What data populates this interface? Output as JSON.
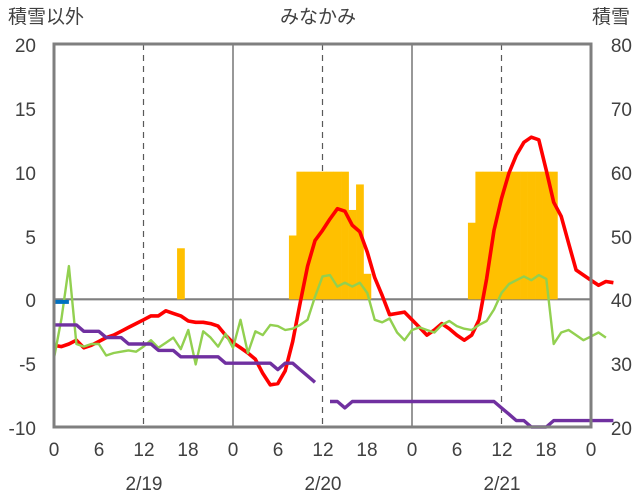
{
  "chart_data": {
    "type": "bar+line",
    "title": "みなかみ",
    "left_axis_label": "積雪以外",
    "right_axis_label": "積雪",
    "left_ylim": [
      -10,
      20
    ],
    "left_ticks": [
      "20",
      "15",
      "10",
      "5",
      "0",
      "-5",
      "-10"
    ],
    "right_ylim": [
      20,
      80
    ],
    "right_ticks": [
      "80",
      "70",
      "60",
      "50",
      "40",
      "30",
      "20"
    ],
    "x_hours_range": [
      0,
      72
    ],
    "x_tick_labels": [
      "0",
      "6",
      "12",
      "18",
      "0",
      "6",
      "12",
      "18",
      "0",
      "6",
      "12",
      "18",
      "0"
    ],
    "date_labels": [
      "2/19",
      "2/20",
      "2/21"
    ],
    "grid": "dashed verticals at 12h, solid day separators, horizontal zero line",
    "colors": {
      "bar": "#ffc000",
      "red": "#ff0000",
      "green": "#92d050",
      "purple": "#7030a0",
      "blue": "#0070c0",
      "frame": "#7f7f7f"
    },
    "bars": {
      "hours": [
        17,
        32,
        33,
        34,
        35,
        36,
        37,
        38,
        39,
        40,
        41,
        42,
        43,
        56,
        57,
        58,
        59,
        60,
        61,
        62,
        63,
        64,
        65,
        66,
        67
      ],
      "values": [
        4,
        5,
        10,
        10,
        10,
        10,
        10,
        10,
        10,
        7,
        9,
        2,
        0,
        6,
        10,
        10,
        10,
        10,
        10,
        10,
        10,
        10,
        10,
        10,
        10
      ]
    },
    "series": [
      {
        "color": "red",
        "axis": "left",
        "points": [
          [
            0,
            -3.6
          ],
          [
            1,
            -3.7
          ],
          [
            2,
            -3.5
          ],
          [
            3,
            -3.2
          ],
          [
            4,
            -3.8
          ],
          [
            5,
            -3.6
          ],
          [
            6,
            -3.3
          ],
          [
            7,
            -3
          ],
          [
            8,
            -2.8
          ],
          [
            9,
            -2.5
          ],
          [
            10,
            -2.2
          ],
          [
            11,
            -1.9
          ],
          [
            12,
            -1.6
          ],
          [
            13,
            -1.3
          ],
          [
            14,
            -1.3
          ],
          [
            15,
            -0.9
          ],
          [
            16,
            -1.1
          ],
          [
            17,
            -1.3
          ],
          [
            18,
            -1.7
          ],
          [
            19,
            -1.8
          ],
          [
            20,
            -1.8
          ],
          [
            21,
            -1.9
          ],
          [
            22,
            -2.1
          ],
          [
            23,
            -2.8
          ],
          [
            24,
            -3.4
          ],
          [
            25,
            -3.8
          ],
          [
            26,
            -4.2
          ],
          [
            27,
            -4.7
          ],
          [
            28,
            -5.8
          ],
          [
            29,
            -6.7
          ],
          [
            30,
            -6.6
          ],
          [
            31,
            -5.6
          ],
          [
            32,
            -3.3
          ],
          [
            33,
            -0.3
          ],
          [
            34,
            2.6
          ],
          [
            35,
            4.6
          ],
          [
            36,
            5.4
          ],
          [
            37,
            6.3
          ],
          [
            38,
            7.1
          ],
          [
            39,
            6.9
          ],
          [
            40,
            5.8
          ],
          [
            41,
            5.3
          ],
          [
            42,
            3.7
          ],
          [
            43,
            1.7
          ],
          [
            44,
            0.3
          ],
          [
            45,
            -1.2
          ],
          [
            46,
            -1.1
          ],
          [
            47,
            -1
          ],
          [
            48,
            -1.6
          ],
          [
            49,
            -2.2
          ],
          [
            50,
            -2.8
          ],
          [
            51,
            -2.4
          ],
          [
            52,
            -1.9
          ],
          [
            53,
            -2.3
          ],
          [
            54,
            -2.8
          ],
          [
            55,
            -3.2
          ],
          [
            56,
            -2.8
          ],
          [
            57,
            -1.6
          ],
          [
            58,
            1.6
          ],
          [
            59,
            5.4
          ],
          [
            60,
            7.9
          ],
          [
            61,
            9.9
          ],
          [
            62,
            11.3
          ],
          [
            63,
            12.3
          ],
          [
            64,
            12.7
          ],
          [
            65,
            12.5
          ],
          [
            66,
            10.1
          ],
          [
            67,
            7.6
          ],
          [
            68,
            6.5
          ],
          [
            69,
            4.4
          ],
          [
            70,
            2.3
          ],
          [
            71,
            1.9
          ],
          [
            72,
            1.5
          ],
          [
            73,
            1.1
          ],
          [
            74,
            1.4
          ],
          [
            75,
            1.3
          ]
        ]
      },
      {
        "color": "green",
        "axis": "left",
        "points": [
          [
            0,
            -4.6
          ],
          [
            1,
            -1.5
          ],
          [
            2,
            2.6
          ],
          [
            3,
            -3.5
          ],
          [
            4,
            -3.7
          ],
          [
            5,
            -3.5
          ],
          [
            6,
            -3.5
          ],
          [
            7,
            -4.4
          ],
          [
            8,
            -4.2
          ],
          [
            9,
            -4.1
          ],
          [
            10,
            -4
          ],
          [
            11,
            -4.1
          ],
          [
            12,
            -3.7
          ],
          [
            13,
            -3.2
          ],
          [
            14,
            -3.8
          ],
          [
            15,
            -3.4
          ],
          [
            16,
            -3
          ],
          [
            17,
            -3.9
          ],
          [
            18,
            -2.4
          ],
          [
            19,
            -5.1
          ],
          [
            20,
            -2.5
          ],
          [
            21,
            -3
          ],
          [
            22,
            -3.7
          ],
          [
            23,
            -2.7
          ],
          [
            24,
            -3.8
          ],
          [
            25,
            -1.6
          ],
          [
            26,
            -4.2
          ],
          [
            27,
            -2.5
          ],
          [
            28,
            -2.8
          ],
          [
            29,
            -2
          ],
          [
            30,
            -2.1
          ],
          [
            31,
            -2.4
          ],
          [
            32,
            -2.3
          ],
          [
            33,
            -2
          ],
          [
            34,
            -1.6
          ],
          [
            35,
            0.2
          ],
          [
            36,
            1.8
          ],
          [
            37,
            1.9
          ],
          [
            38,
            1
          ],
          [
            39,
            1.3
          ],
          [
            40,
            1
          ],
          [
            41,
            1.3
          ],
          [
            42,
            0.5
          ],
          [
            43,
            -1.6
          ],
          [
            44,
            -1.8
          ],
          [
            45,
            -1.5
          ],
          [
            46,
            -2.6
          ],
          [
            47,
            -3.2
          ],
          [
            48,
            -2.4
          ],
          [
            49,
            -2.2
          ],
          [
            50,
            -2.4
          ],
          [
            51,
            -2.6
          ],
          [
            52,
            -2
          ],
          [
            53,
            -1.7
          ],
          [
            54,
            -2.1
          ],
          [
            55,
            -2.3
          ],
          [
            56,
            -2.4
          ],
          [
            57,
            -2
          ],
          [
            58,
            -1.7
          ],
          [
            59,
            -0.8
          ],
          [
            60,
            0.5
          ],
          [
            61,
            1.2
          ],
          [
            62,
            1.5
          ],
          [
            63,
            1.8
          ],
          [
            64,
            1.5
          ],
          [
            65,
            1.9
          ],
          [
            66,
            1.6
          ],
          [
            67,
            -3.5
          ],
          [
            68,
            -2.6
          ],
          [
            69,
            -2.4
          ],
          [
            70,
            -2.8
          ],
          [
            71,
            -3.2
          ],
          [
            72,
            -2.9
          ],
          [
            73,
            -2.6
          ],
          [
            74,
            -3
          ]
        ]
      },
      {
        "color": "purple",
        "axis": "right",
        "points": [
          [
            0,
            36
          ],
          [
            1,
            36
          ],
          [
            2,
            36
          ],
          [
            3,
            36
          ],
          [
            4,
            35
          ],
          [
            5,
            35
          ],
          [
            6,
            35
          ],
          [
            7,
            34
          ],
          [
            8,
            34
          ],
          [
            9,
            34
          ],
          [
            10,
            33
          ],
          [
            11,
            33
          ],
          [
            12,
            33
          ],
          [
            13,
            33
          ],
          [
            14,
            32
          ],
          [
            15,
            32
          ],
          [
            16,
            32
          ],
          [
            17,
            31
          ],
          [
            18,
            31
          ],
          [
            19,
            31
          ],
          [
            20,
            31
          ],
          [
            21,
            31
          ],
          [
            22,
            31
          ],
          [
            23,
            30
          ],
          [
            24,
            30
          ],
          [
            25,
            30
          ],
          [
            26,
            30
          ],
          [
            27,
            30
          ],
          [
            28,
            30
          ],
          [
            29,
            30
          ],
          [
            30,
            29
          ],
          [
            31,
            30
          ],
          [
            32,
            30
          ],
          [
            33,
            29
          ],
          [
            34,
            28
          ],
          [
            35,
            27
          ],
          [
            36,
            null
          ],
          [
            37,
            24
          ],
          [
            38,
            24
          ],
          [
            39,
            23
          ],
          [
            40,
            24
          ],
          [
            41,
            24
          ],
          [
            42,
            24
          ],
          [
            43,
            24
          ],
          [
            44,
            24
          ],
          [
            45,
            24
          ],
          [
            46,
            24
          ],
          [
            47,
            24
          ],
          [
            48,
            24
          ],
          [
            49,
            24
          ],
          [
            50,
            24
          ],
          [
            51,
            24
          ],
          [
            52,
            24
          ],
          [
            53,
            24
          ],
          [
            54,
            24
          ],
          [
            55,
            24
          ],
          [
            56,
            24
          ],
          [
            57,
            24
          ],
          [
            58,
            24
          ],
          [
            59,
            24
          ],
          [
            60,
            23
          ],
          [
            61,
            22
          ],
          [
            62,
            21
          ],
          [
            63,
            21
          ],
          [
            64,
            20
          ],
          [
            65,
            20
          ],
          [
            66,
            20
          ],
          [
            67,
            21
          ],
          [
            68,
            21
          ],
          [
            69,
            21
          ],
          [
            70,
            21
          ],
          [
            71,
            21
          ],
          [
            72,
            21
          ],
          [
            73,
            21
          ],
          [
            74,
            21
          ],
          [
            75,
            21
          ]
        ]
      },
      {
        "color": "blue",
        "axis": "left",
        "points": [
          [
            0,
            -0.2
          ],
          [
            1,
            -0.2
          ],
          [
            2,
            -0.2
          ]
        ]
      }
    ]
  }
}
